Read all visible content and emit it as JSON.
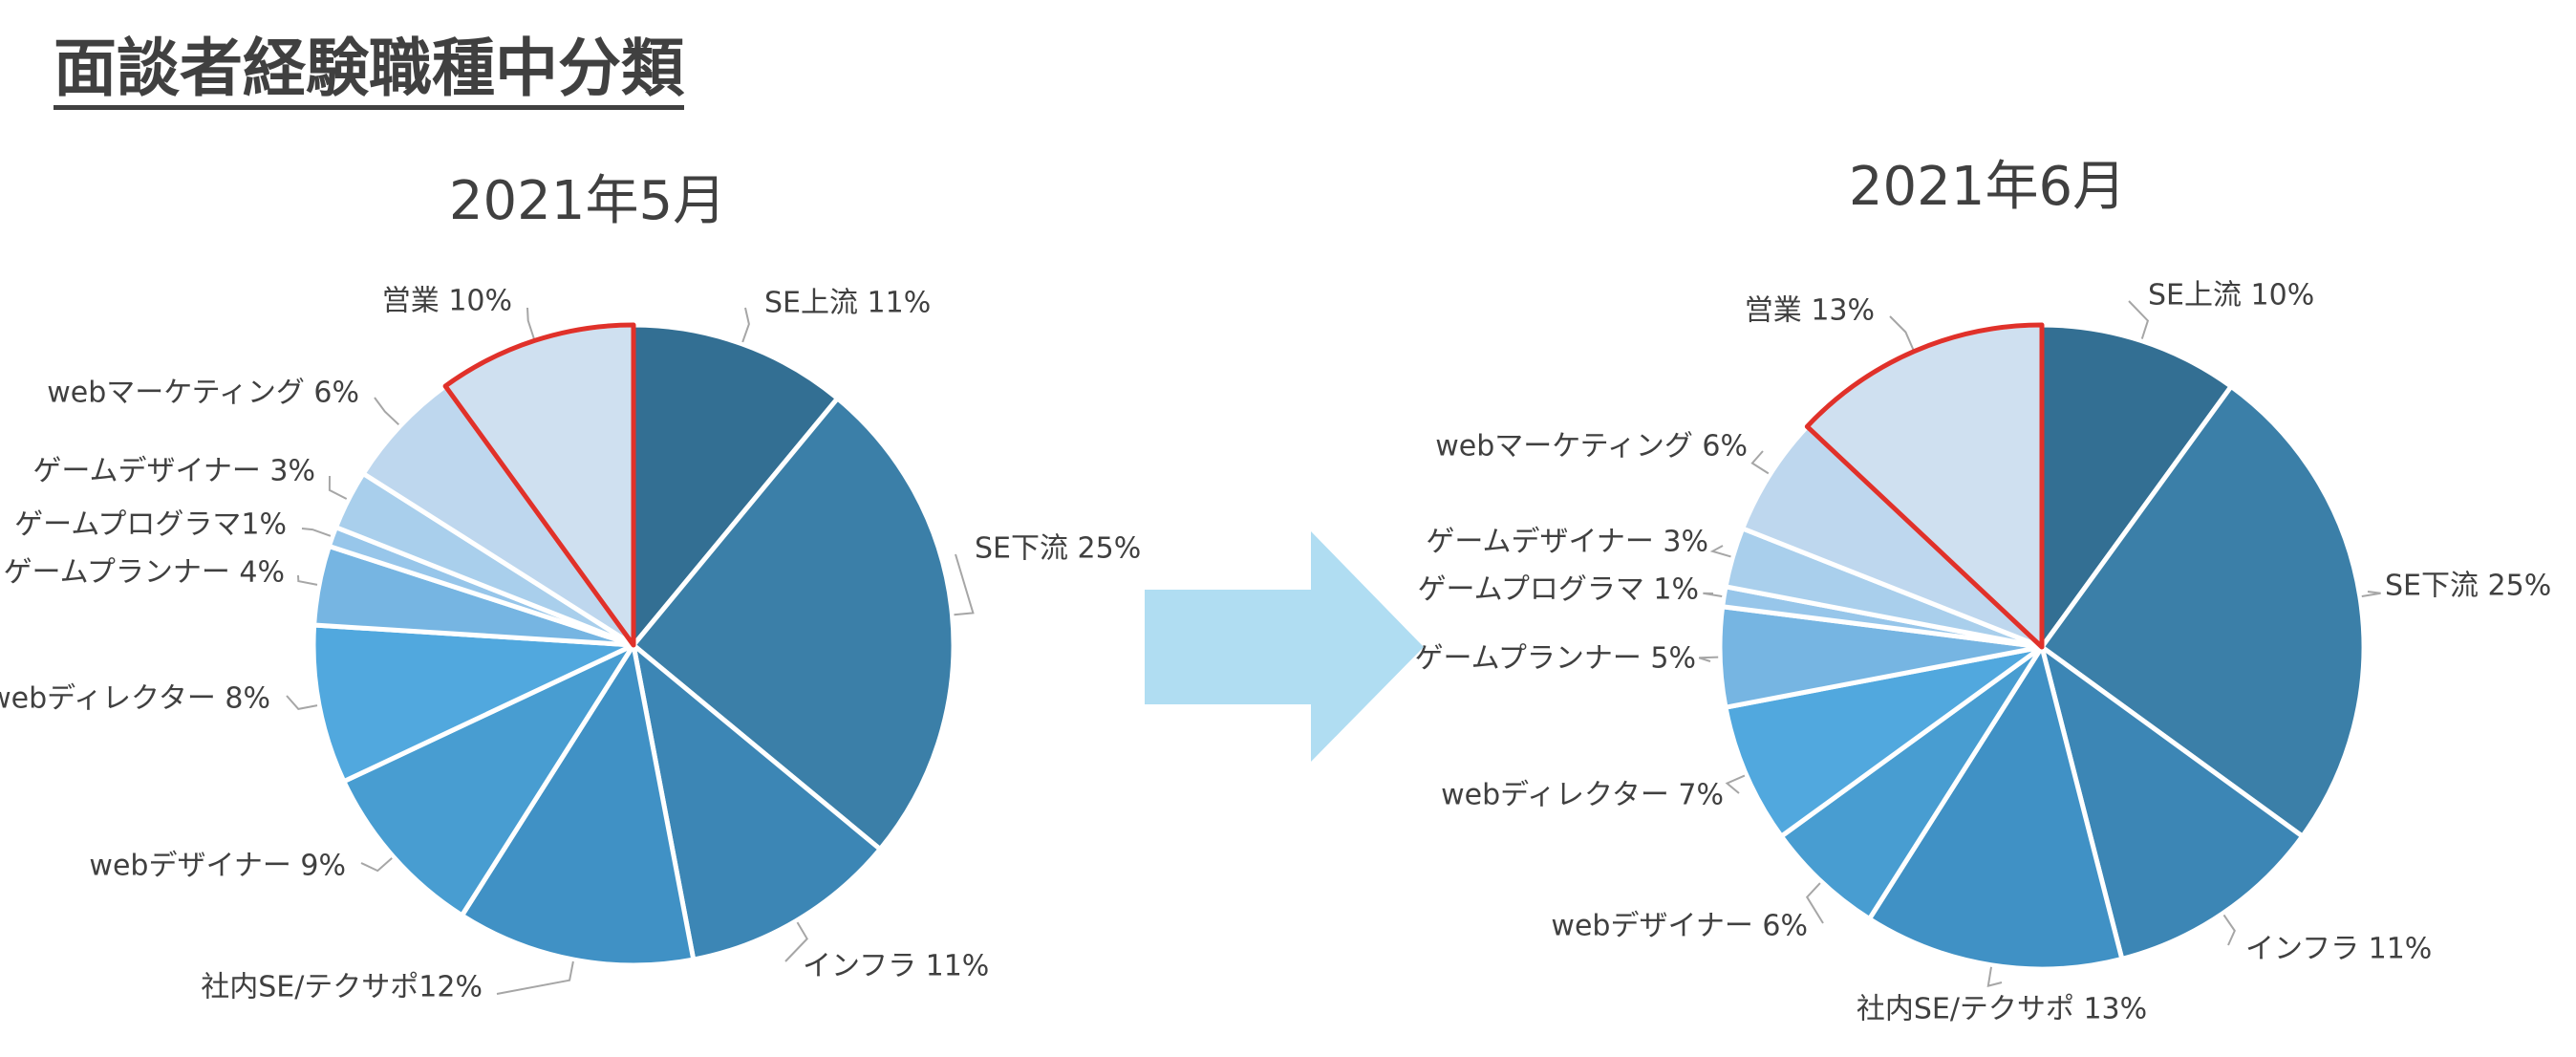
{
  "page_title": "面談者経験職種中分類",
  "arrow_color": "#b0ddf2",
  "highlight_color": "#e0312a",
  "chart_data": [
    {
      "type": "pie",
      "title": "2021年5月",
      "start": "12 o'clock",
      "direction": "clockwise",
      "highlighted_slice": "営業",
      "slices": [
        {
          "name": "SE上流",
          "label": "SE上流 11%",
          "value": 11,
          "color": "#336f93"
        },
        {
          "name": "SE下流",
          "label": "SE下流 25%",
          "value": 25,
          "color": "#3b7fa8"
        },
        {
          "name": "インフラ",
          "label": "インフラ 11%",
          "value": 11,
          "color": "#3c86b5"
        },
        {
          "name": "社内SE/テクサポ",
          "label": "社内SE/テクサポ12%",
          "value": 12,
          "color": "#4091c5"
        },
        {
          "name": "webデザイナー",
          "label": "webデザイナー 9%",
          "value": 9,
          "color": "#489dd1"
        },
        {
          "name": "webディレクター",
          "label": "webディレクター 8%",
          "value": 8,
          "color": "#51a8de"
        },
        {
          "name": "ゲームプランナー",
          "label": "ゲームプランナー 4%",
          "value": 4,
          "color": "#76b5e2"
        },
        {
          "name": "ゲームプログラマ",
          "label": "ゲームプログラマ1%",
          "value": 1,
          "color": "#97c6ea"
        },
        {
          "name": "ゲームデザイナー",
          "label": "ゲームデザイナー 3%",
          "value": 3,
          "color": "#a9cfec"
        },
        {
          "name": "webマーケティング",
          "label": "webマーケティング 6%",
          "value": 6,
          "color": "#bed7ee"
        },
        {
          "name": "営業",
          "label": "営業 10%",
          "value": 10,
          "color": "#cfe0f0"
        }
      ]
    },
    {
      "type": "pie",
      "title": "2021年6月",
      "start": "12 o'clock",
      "direction": "clockwise",
      "highlighted_slice": "営業",
      "slices": [
        {
          "name": "SE上流",
          "label": "SE上流 10%",
          "value": 10,
          "color": "#336f93"
        },
        {
          "name": "SE下流",
          "label": "SE下流 25%",
          "value": 25,
          "color": "#3b7fa8"
        },
        {
          "name": "インフラ",
          "label": "インフラ 11%",
          "value": 11,
          "color": "#3c86b5"
        },
        {
          "name": "社内SE/テクサポ",
          "label": "社内SE/テクサポ 13%",
          "value": 13,
          "color": "#4091c5"
        },
        {
          "name": "webデザイナー",
          "label": "webデザイナー 6%",
          "value": 6,
          "color": "#489dd1"
        },
        {
          "name": "webディレクター",
          "label": "webディレクター 7%",
          "value": 7,
          "color": "#51a8de"
        },
        {
          "name": "ゲームプランナー",
          "label": "ゲームプランナー 5%",
          "value": 5,
          "color": "#76b5e2"
        },
        {
          "name": "ゲームプログラマ",
          "label": "ゲームプログラマ 1%",
          "value": 1,
          "color": "#97c6ea"
        },
        {
          "name": "ゲームデザイナー",
          "label": "ゲームデザイナー 3%",
          "value": 3,
          "color": "#a9cfec"
        },
        {
          "name": "webマーケティング",
          "label": "webマーケティング 6%",
          "value": 6,
          "color": "#bed7ee"
        },
        {
          "name": "営業",
          "label": "営業 13%",
          "value": 13,
          "color": "#cfe0f0"
        }
      ]
    }
  ]
}
